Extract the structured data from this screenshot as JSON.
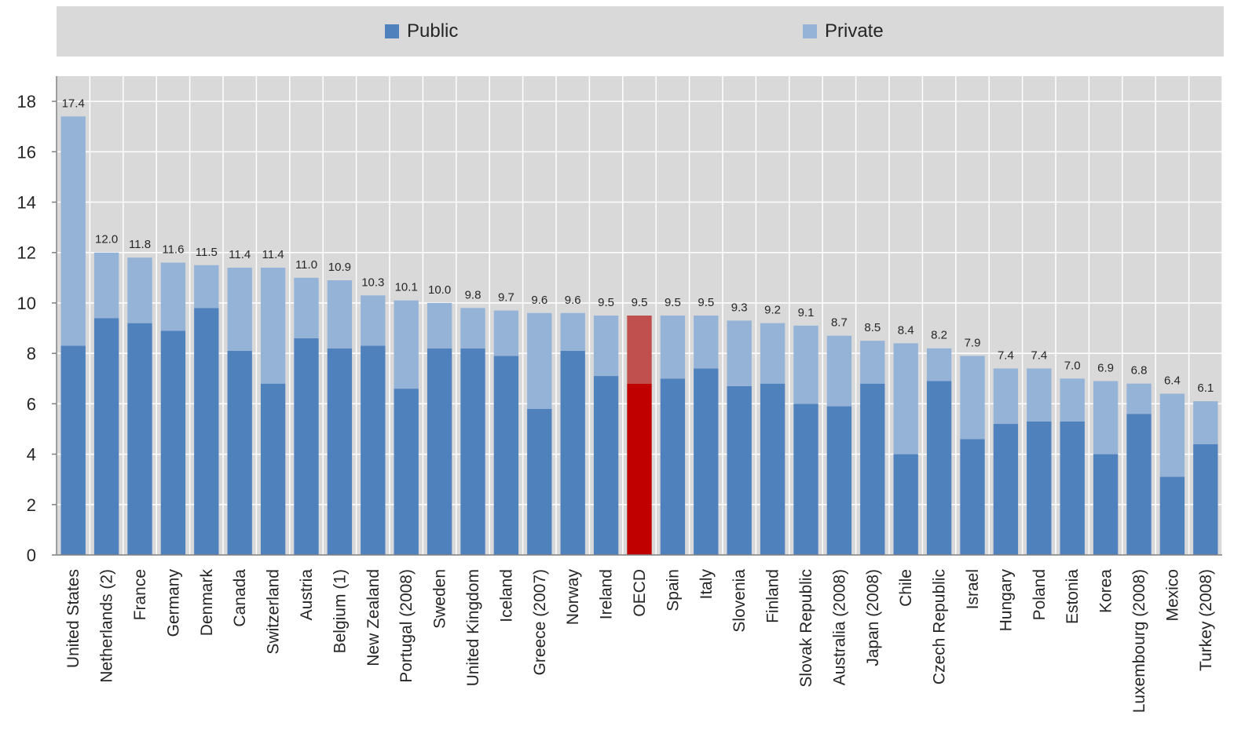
{
  "chart_data": {
    "type": "bar",
    "stacked": true,
    "legend": {
      "placement": "top",
      "entries": [
        {
          "name": "Public",
          "color": "#4f81bd"
        },
        {
          "name": "Private",
          "color": "#95b3d7"
        }
      ]
    },
    "highlight": {
      "category": "OECD",
      "public_color": "#c00000",
      "private_color": "#c0504d"
    },
    "plot_background": "#d9d9d9",
    "grid": true,
    "ylim": [
      0,
      19
    ],
    "yticks": [
      0,
      2,
      4,
      6,
      8,
      10,
      12,
      14,
      16,
      18
    ],
    "categories": [
      "United States",
      "Netherlands (2)",
      "France",
      "Germany",
      "Denmark",
      "Canada",
      "Switzerland",
      "Austria",
      "Belgium (1)",
      "New Zealand",
      "Portugal (2008)",
      "Sweden",
      "United Kingdom",
      "Iceland",
      "Greece (2007)",
      "Norway",
      "Ireland",
      "OECD",
      "Spain",
      "Italy",
      "Slovenia",
      "Finland",
      "Slovak Republic",
      "Australia (2008)",
      "Japan (2008)",
      "Chile",
      "Czech Republic",
      "Israel",
      "Hungary",
      "Poland",
      "Estonia",
      "Korea",
      "Luxembourg (2008)",
      "Mexico",
      "Turkey (2008)"
    ],
    "totals": [
      17.4,
      12.0,
      11.8,
      11.6,
      11.5,
      11.4,
      11.4,
      11.0,
      10.9,
      10.3,
      10.1,
      10.0,
      9.8,
      9.7,
      9.6,
      9.6,
      9.5,
      9.5,
      9.5,
      9.5,
      9.3,
      9.2,
      9.1,
      8.7,
      8.5,
      8.4,
      8.2,
      7.9,
      7.4,
      7.4,
      7.0,
      6.9,
      6.8,
      6.4,
      6.1
    ],
    "total_labels": [
      "17.4",
      "12.0",
      "11.8",
      "11.6",
      "11.5",
      "11.4",
      "11.4",
      "11.0",
      "10.9",
      "10.3",
      "10.1",
      "10.0",
      "9.8",
      "9.7",
      "9.6",
      "9.6",
      "9.5",
      "9.5",
      "9.5",
      "9.5",
      "9.3",
      "9.2",
      "9.1",
      "8.7",
      "8.5",
      "8.4",
      "8.2",
      "7.9",
      "7.4",
      "7.4",
      "7.0",
      "6.9",
      "6.8",
      "6.4",
      "6.1"
    ],
    "series": [
      {
        "name": "Public",
        "values": [
          8.3,
          9.4,
          9.2,
          8.9,
          9.8,
          8.1,
          6.8,
          8.6,
          8.2,
          8.3,
          6.6,
          8.2,
          8.2,
          7.9,
          5.8,
          8.1,
          7.1,
          6.8,
          7.0,
          7.4,
          6.7,
          6.8,
          6.0,
          5.9,
          6.8,
          4.0,
          6.9,
          4.6,
          5.2,
          5.3,
          5.3,
          4.0,
          5.6,
          3.1,
          4.4
        ]
      },
      {
        "name": "Private",
        "values": [
          9.1,
          2.6,
          2.6,
          2.7,
          1.7,
          3.3,
          4.6,
          2.4,
          2.7,
          2.0,
          3.5,
          1.8,
          1.6,
          1.8,
          3.8,
          1.5,
          2.4,
          2.7,
          2.5,
          2.1,
          2.6,
          2.4,
          3.1,
          2.8,
          1.7,
          4.4,
          1.3,
          3.3,
          2.2,
          2.1,
          1.7,
          2.9,
          1.2,
          3.3,
          1.7
        ]
      }
    ]
  }
}
